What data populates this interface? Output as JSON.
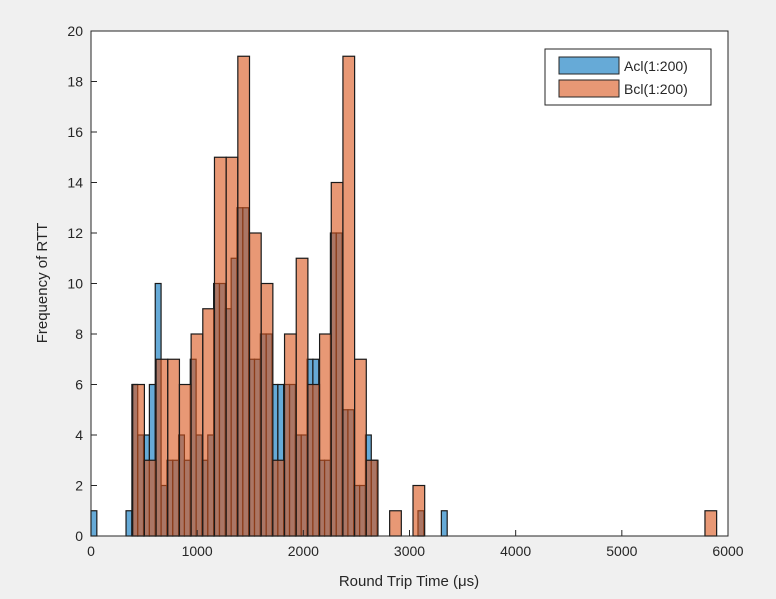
{
  "chart_data": {
    "type": "bar",
    "subtype": "overlaid-histogram",
    "title": "",
    "xlabel": "Round Trip Time (μs)",
    "ylabel": "Frequency of RTT",
    "xlim": [
      0,
      6000
    ],
    "ylim": [
      0,
      20
    ],
    "xticks": [
      0,
      1000,
      2000,
      3000,
      4000,
      5000,
      6000
    ],
    "yticks": [
      0,
      2,
      4,
      6,
      8,
      10,
      12,
      14,
      16,
      18,
      20
    ],
    "grid": false,
    "legend_position": "top-right",
    "series": [
      {
        "name": "Acl(1:200)",
        "color": "#0072BD",
        "bin_start": 0,
        "bin_width": 55,
        "values": [
          1,
          0,
          0,
          0,
          0,
          0,
          1,
          6,
          4,
          4,
          6,
          10,
          2,
          3,
          3,
          4,
          3,
          7,
          4,
          3,
          4,
          10,
          10,
          9,
          11,
          13,
          13,
          7,
          7,
          8,
          8,
          6,
          6,
          6,
          6,
          4,
          4,
          7,
          7,
          3,
          3,
          12,
          12,
          5,
          5,
          2,
          2,
          4,
          3,
          0,
          0,
          0,
          0,
          0,
          0,
          0,
          1,
          0,
          0,
          0,
          1
        ]
      },
      {
        "name": "Bcl(1:200)",
        "color": "#D95319",
        "bin_start": 393,
        "bin_width": 110,
        "values": [
          6,
          3,
          7,
          7,
          6,
          8,
          9,
          15,
          15,
          19,
          12,
          10,
          3,
          8,
          11,
          6,
          8,
          14,
          19,
          7,
          3,
          0,
          1,
          0,
          2,
          0,
          0,
          0,
          0,
          0,
          0,
          0,
          0,
          0,
          0,
          0,
          0,
          0,
          0,
          0,
          0,
          0,
          0,
          0,
          0,
          0,
          0,
          0,
          0,
          1
        ]
      }
    ]
  }
}
